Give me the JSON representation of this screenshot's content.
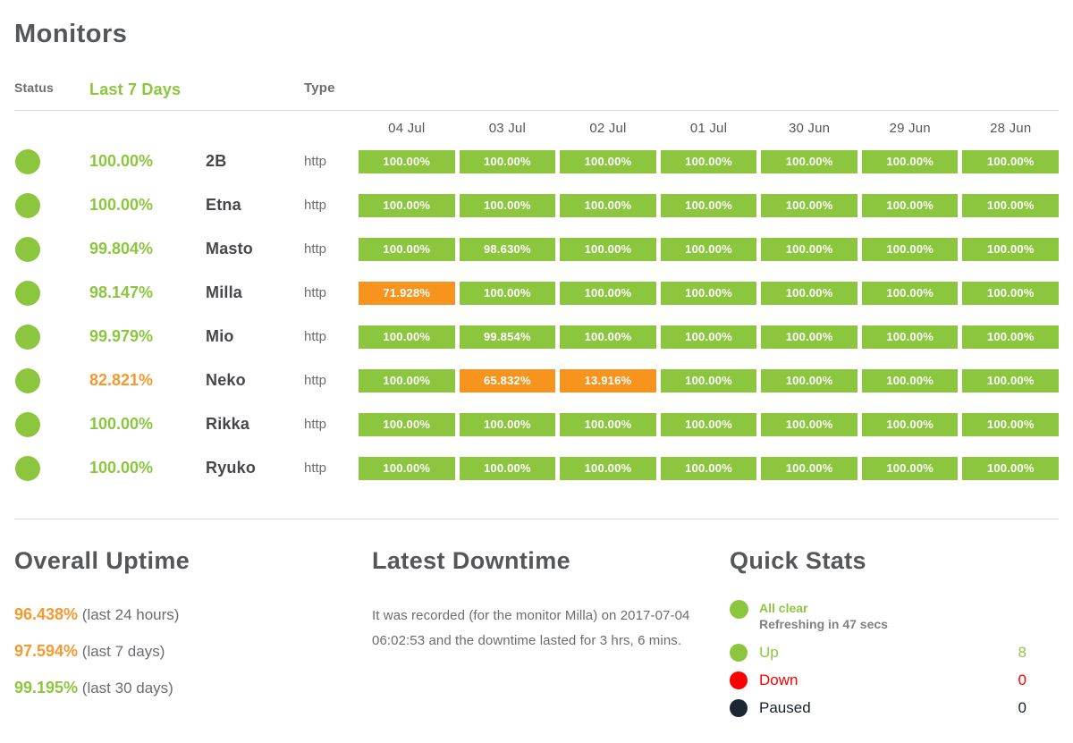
{
  "page": {
    "title": "Monitors"
  },
  "colors": {
    "green": "#8CC63E",
    "orange_bar": "#F7941E",
    "orange_text": "#F6992F",
    "red": "#FA0000",
    "paused_dark": "#1C2733",
    "heading_gray": "#55565A"
  },
  "table": {
    "headers": {
      "status": "Status",
      "last7days": "Last 7 Days",
      "type": "Type"
    },
    "dates": [
      "04 Jul",
      "03 Jul",
      "02 Jul",
      "01 Jul",
      "30 Jun",
      "29 Jun",
      "28 Jun"
    ],
    "rows": [
      {
        "name": "2B",
        "uptime": "100.00%",
        "uptime_state": "up",
        "type": "http",
        "days": [
          {
            "v": "100.00%",
            "s": "up"
          },
          {
            "v": "100.00%",
            "s": "up"
          },
          {
            "v": "100.00%",
            "s": "up"
          },
          {
            "v": "100.00%",
            "s": "up"
          },
          {
            "v": "100.00%",
            "s": "up"
          },
          {
            "v": "100.00%",
            "s": "up"
          },
          {
            "v": "100.00%",
            "s": "up"
          }
        ]
      },
      {
        "name": "Etna",
        "uptime": "100.00%",
        "uptime_state": "up",
        "type": "http",
        "days": [
          {
            "v": "100.00%",
            "s": "up"
          },
          {
            "v": "100.00%",
            "s": "up"
          },
          {
            "v": "100.00%",
            "s": "up"
          },
          {
            "v": "100.00%",
            "s": "up"
          },
          {
            "v": "100.00%",
            "s": "up"
          },
          {
            "v": "100.00%",
            "s": "up"
          },
          {
            "v": "100.00%",
            "s": "up"
          }
        ]
      },
      {
        "name": "Masto",
        "uptime": "99.804%",
        "uptime_state": "up",
        "type": "http",
        "days": [
          {
            "v": "100.00%",
            "s": "up"
          },
          {
            "v": "98.630%",
            "s": "up"
          },
          {
            "v": "100.00%",
            "s": "up"
          },
          {
            "v": "100.00%",
            "s": "up"
          },
          {
            "v": "100.00%",
            "s": "up"
          },
          {
            "v": "100.00%",
            "s": "up"
          },
          {
            "v": "100.00%",
            "s": "up"
          }
        ]
      },
      {
        "name": "Milla",
        "uptime": "98.147%",
        "uptime_state": "up",
        "type": "http",
        "days": [
          {
            "v": "71.928%",
            "s": "warn"
          },
          {
            "v": "100.00%",
            "s": "up"
          },
          {
            "v": "100.00%",
            "s": "up"
          },
          {
            "v": "100.00%",
            "s": "up"
          },
          {
            "v": "100.00%",
            "s": "up"
          },
          {
            "v": "100.00%",
            "s": "up"
          },
          {
            "v": "100.00%",
            "s": "up"
          }
        ]
      },
      {
        "name": "Mio",
        "uptime": "99.979%",
        "uptime_state": "up",
        "type": "http",
        "days": [
          {
            "v": "100.00%",
            "s": "up"
          },
          {
            "v": "99.854%",
            "s": "up"
          },
          {
            "v": "100.00%",
            "s": "up"
          },
          {
            "v": "100.00%",
            "s": "up"
          },
          {
            "v": "100.00%",
            "s": "up"
          },
          {
            "v": "100.00%",
            "s": "up"
          },
          {
            "v": "100.00%",
            "s": "up"
          }
        ]
      },
      {
        "name": "Neko",
        "uptime": "82.821%",
        "uptime_state": "warn",
        "type": "http",
        "days": [
          {
            "v": "100.00%",
            "s": "up"
          },
          {
            "v": "65.832%",
            "s": "warn"
          },
          {
            "v": "13.916%",
            "s": "warn"
          },
          {
            "v": "100.00%",
            "s": "up"
          },
          {
            "v": "100.00%",
            "s": "up"
          },
          {
            "v": "100.00%",
            "s": "up"
          },
          {
            "v": "100.00%",
            "s": "up"
          }
        ]
      },
      {
        "name": "Rikka",
        "uptime": "100.00%",
        "uptime_state": "up",
        "type": "http",
        "days": [
          {
            "v": "100.00%",
            "s": "up"
          },
          {
            "v": "100.00%",
            "s": "up"
          },
          {
            "v": "100.00%",
            "s": "up"
          },
          {
            "v": "100.00%",
            "s": "up"
          },
          {
            "v": "100.00%",
            "s": "up"
          },
          {
            "v": "100.00%",
            "s": "up"
          },
          {
            "v": "100.00%",
            "s": "up"
          }
        ]
      },
      {
        "name": "Ryuko",
        "uptime": "100.00%",
        "uptime_state": "up",
        "type": "http",
        "days": [
          {
            "v": "100.00%",
            "s": "up"
          },
          {
            "v": "100.00%",
            "s": "up"
          },
          {
            "v": "100.00%",
            "s": "up"
          },
          {
            "v": "100.00%",
            "s": "up"
          },
          {
            "v": "100.00%",
            "s": "up"
          },
          {
            "v": "100.00%",
            "s": "up"
          },
          {
            "v": "100.00%",
            "s": "up"
          }
        ]
      }
    ]
  },
  "overall_uptime": {
    "title": "Overall Uptime",
    "stats": [
      {
        "value": "96.438%",
        "label": "(last 24 hours)",
        "state": "warn"
      },
      {
        "value": "97.594%",
        "label": "(last 7 days)",
        "state": "warn"
      },
      {
        "value": "99.195%",
        "label": "(last 30 days)",
        "state": "up"
      }
    ]
  },
  "latest_downtime": {
    "title": "Latest Downtime",
    "text": "It was recorded (for the monitor Milla) on 2017-07-04 06:02:53 and the downtime lasted for 3 hrs, 6 mins."
  },
  "quick_stats": {
    "title": "Quick Stats",
    "alert": {
      "label": "All clear",
      "refresh": "Refreshing in 47 secs"
    },
    "items": [
      {
        "label": "Up",
        "value": "8",
        "state": "up"
      },
      {
        "label": "Down",
        "value": "0",
        "state": "down"
      },
      {
        "label": "Paused",
        "value": "0",
        "state": "paused"
      }
    ]
  }
}
